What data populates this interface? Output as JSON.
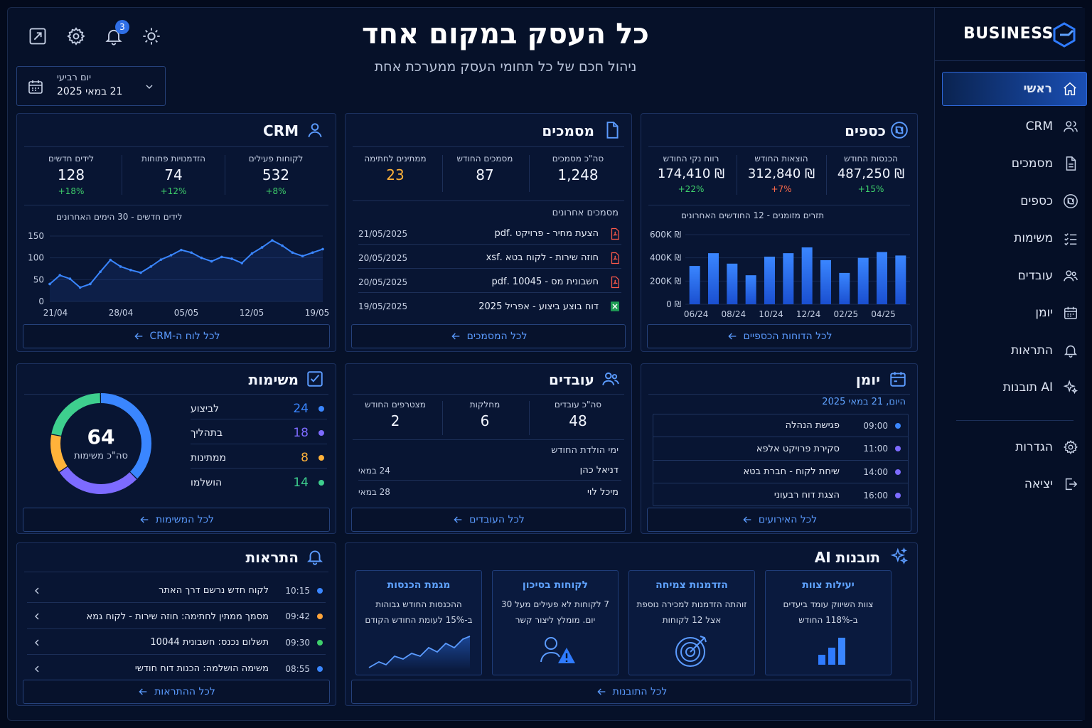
{
  "brand": {
    "name": "BUSINESS"
  },
  "header": {
    "title": "כל העסק במקום אחד",
    "subtitle": "ניהול חכם של כל תחומי העסק ממערכת אחת",
    "notification_count": "3"
  },
  "date_picker": {
    "day": "יום רביעי",
    "date": "21 במאי 2025"
  },
  "nav": {
    "items": [
      {
        "label": "ראשי",
        "icon": "home-icon",
        "active": true
      },
      {
        "label": "CRM",
        "icon": "users-icon"
      },
      {
        "label": "מסמכים",
        "icon": "document-icon"
      },
      {
        "label": "כספים",
        "icon": "shekel-icon"
      },
      {
        "label": "משימות",
        "icon": "checklist-icon"
      },
      {
        "label": "עובדים",
        "icon": "team-icon"
      },
      {
        "label": "יומן",
        "icon": "calendar-icon"
      },
      {
        "label": "התראות",
        "icon": "bell-icon"
      },
      {
        "label": "תובנות AI",
        "icon": "sparkle-icon"
      }
    ],
    "bottom": [
      {
        "label": "הגדרות",
        "icon": "gear-icon"
      },
      {
        "label": "יציאה",
        "icon": "logout-icon"
      }
    ]
  },
  "crm": {
    "title": "CRM",
    "stats": [
      {
        "label": "לקוחות פעילים",
        "value": "532",
        "change": "+8%"
      },
      {
        "label": "הזדמנויות פתוחות",
        "value": "74",
        "change": "+12%"
      },
      {
        "label": "לידים חדשים",
        "value": "128",
        "change": "+18%"
      }
    ],
    "chart_title": "לידים חדשים - 30 הימים האחרונים",
    "link": "לכל לוח ה-CRM"
  },
  "docs": {
    "title": "מסמכים",
    "stats": [
      {
        "label": "סה\"כ מסמכים",
        "value": "1,248"
      },
      {
        "label": "מסמכים החודש",
        "value": "87"
      },
      {
        "label": "ממתינים לחתימה",
        "value": "23"
      }
    ],
    "recent_title": "מסמכים אחרונים",
    "recent": [
      {
        "name": "הצעת מחיר - פרויקט .pdf",
        "date": "21/05/2025",
        "type": "pdf"
      },
      {
        "name": "חוזה שירות - לקוח בטא .xsf",
        "date": "20/05/2025",
        "type": "pdf"
      },
      {
        "name": "חשבונית מס - 10045 .pdf",
        "date": "20/05/2025",
        "type": "pdf"
      },
      {
        "name": "דוח בוצע ביצוע - אפריל 2025",
        "date": "19/05/2025",
        "type": "xls"
      }
    ],
    "link": "לכל המסמכים"
  },
  "finance": {
    "title": "כספים",
    "stats": [
      {
        "label": "הכנסות החודש",
        "value": "487,250 ₪",
        "change": "+15%"
      },
      {
        "label": "הוצאות החודש",
        "value": "312,840 ₪",
        "change": "+7%"
      },
      {
        "label": "רווח נקי החודש",
        "value": "174,410 ₪",
        "change": "+22%"
      }
    ],
    "chart_title": "תזרים מזומנים - 12 החודשים האחרונים",
    "link": "לכל הדוחות הכספיים"
  },
  "tasks": {
    "title": "משימות",
    "total": "64",
    "total_label": "סה\"כ משימות",
    "items": [
      {
        "label": "לביצוע",
        "value": "24",
        "color": "#3a86ff"
      },
      {
        "label": "בתהליך",
        "value": "18",
        "color": "#7d6bff"
      },
      {
        "label": "ממתינות",
        "value": "8",
        "color": "#ffb23a"
      },
      {
        "label": "הושלמו",
        "value": "14",
        "color": "#3ecf8e"
      }
    ],
    "link": "לכל המשימות"
  },
  "employees": {
    "title": "עובדים",
    "stats": [
      {
        "label": "סה\"כ עובדים",
        "value": "48"
      },
      {
        "label": "מחלקות",
        "value": "6"
      },
      {
        "label": "מצטרפים החודש",
        "value": "2"
      }
    ],
    "birthdays_title": "ימי הולדת החודש",
    "birthdays": [
      {
        "name": "דניאל כהן",
        "date": "24 במאי"
      },
      {
        "name": "מיכל לוי",
        "date": "28 במאי"
      }
    ],
    "link": "לכל העובדים"
  },
  "calendar": {
    "title": "יומן",
    "today": "היום, 21 במאי 2025",
    "events": [
      {
        "time": "09:00",
        "title": "פגישת הנהלה",
        "color": "#3a86ff"
      },
      {
        "time": "11:00",
        "title": "סקירת פרויקט אלפא",
        "color": "#7d6bff"
      },
      {
        "time": "14:00",
        "title": "שיחת לקוח - חברת בטא",
        "color": "#7d6bff"
      },
      {
        "time": "16:00",
        "title": "הצגת דוח רבעוני",
        "color": "#7d6bff"
      }
    ],
    "link": "לכל האירועים"
  },
  "alerts": {
    "title": "התראות",
    "items": [
      {
        "time": "10:15",
        "text": "לקוח חדש נרשם דרך האתר",
        "color": "#3a86ff"
      },
      {
        "time": "09:42",
        "text": "מסמך ממתין לחתימה: חוזה שירות - לקוח גמא",
        "color": "#ffa53a"
      },
      {
        "time": "09:30",
        "text": "תשלום נכנס: חשבונית 10044",
        "color": "#3ecf6b"
      },
      {
        "time": "08:55",
        "text": "משימה הושלמה: הכנות דוח חודשי",
        "color": "#3a86ff"
      }
    ],
    "link": "לכל ההתראות"
  },
  "ai": {
    "title": "תובנות AI",
    "cards": [
      {
        "title": "יעילות צוות",
        "text": "צוות השיווק עומד ביעדים ב-118% החודש"
      },
      {
        "title": "הזדמנות צמיחה",
        "text": "זוהתה הזדמנות למכירה נוספת אצל 12 לקוחות"
      },
      {
        "title": "לקוחות בסיכון",
        "text": "7 לקוחות לא פעילים מעל 30 יום. מומלץ ליצור קשר"
      },
      {
        "title": "מגמת הכנסות",
        "text": "ההכנסות החודש גבוהות ב-15% לעומת החודש הקודם"
      }
    ],
    "link": "לכל התובנות"
  },
  "chart_data": [
    {
      "type": "line",
      "title": "לידים חדשים - 30 הימים האחרונים",
      "x_ticks": [
        "21/04",
        "28/04",
        "05/05",
        "12/05",
        "19/05"
      ],
      "ylim": [
        0,
        150
      ],
      "y_ticks": [
        "0",
        "50",
        "100",
        "150"
      ],
      "values": [
        40,
        60,
        52,
        32,
        40,
        68,
        95,
        80,
        72,
        66,
        80,
        96,
        106,
        118,
        112,
        100,
        92,
        102,
        98,
        88,
        110,
        124,
        140,
        128,
        112,
        104,
        112,
        120
      ],
      "color": "#3a86ff"
    },
    {
      "type": "bar",
      "title": "תזרים מזומנים - 12 החודשים האחרונים",
      "x_ticks": [
        "06/24",
        "08/24",
        "10/24",
        "12/24",
        "02/25",
        "04/25"
      ],
      "y_ticks": [
        "0 ₪",
        "200K ₪",
        "400K ₪",
        "600K ₪"
      ],
      "ylim": [
        0,
        600000
      ],
      "values": [
        330000,
        440000,
        350000,
        250000,
        410000,
        440000,
        490000,
        380000,
        270000,
        400000,
        450000,
        420000
      ]
    },
    {
      "type": "pie",
      "title": "",
      "categories": [
        "לביצוע",
        "בתהליך",
        "ממתינות",
        "הושלמו"
      ],
      "values": [
        24,
        18,
        8,
        14
      ]
    }
  ]
}
